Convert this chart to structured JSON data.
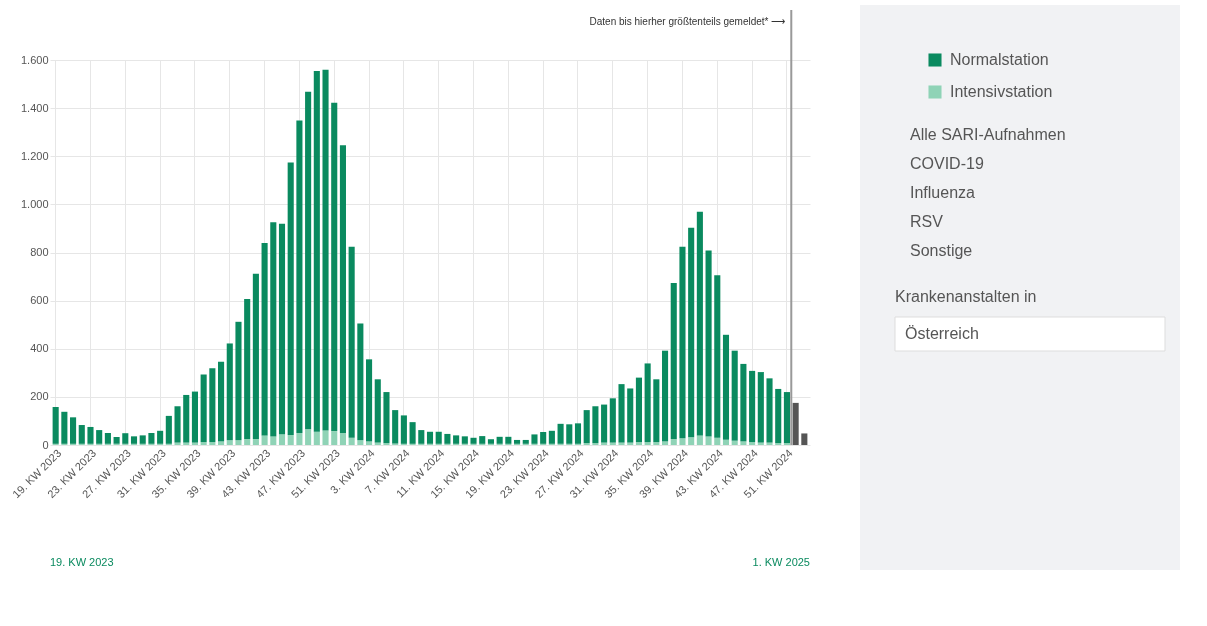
{
  "chart_data": {
    "type": "bar",
    "stacked": true,
    "categories": [
      "19. KW 2023",
      null,
      null,
      null,
      "23. KW 2023",
      null,
      null,
      null,
      "27. KW 2023",
      null,
      null,
      null,
      "31. KW 2023",
      null,
      null,
      null,
      "35. KW 2023",
      null,
      null,
      null,
      "39. KW 2023",
      null,
      null,
      null,
      "43. KW 2023",
      null,
      null,
      null,
      "47. KW 2023",
      null,
      null,
      null,
      "51. KW 2023",
      null,
      null,
      null,
      "3. KW 2024",
      null,
      null,
      null,
      "7. KW 2024",
      null,
      null,
      null,
      "11. KW 2024",
      null,
      null,
      null,
      "15. KW 2024",
      null,
      null,
      null,
      "19. KW 2024",
      null,
      null,
      null,
      "23. KW 2024",
      null,
      null,
      null,
      "27. KW 2024",
      null,
      null,
      null,
      "31. KW 2024",
      null,
      null,
      null,
      "35. KW 2024",
      null,
      null,
      null,
      "39. KW 2024",
      null,
      null,
      null,
      "43. KW 2024",
      null,
      null,
      null,
      "47. KW 2024",
      null,
      null,
      null,
      "51. KW 2024",
      null,
      null
    ],
    "series": [
      {
        "name": "Intensivstation",
        "color": "#8fd3b6",
        "values": [
          5,
          5,
          5,
          5,
          5,
          5,
          5,
          5,
          5,
          5,
          5,
          5,
          5,
          5,
          10,
          10,
          10,
          12,
          12,
          15,
          20,
          20,
          25,
          25,
          40,
          35,
          45,
          42,
          50,
          65,
          55,
          60,
          58,
          50,
          30,
          20,
          15,
          10,
          8,
          6,
          5,
          5,
          5,
          5,
          5,
          5,
          5,
          5,
          5,
          5,
          5,
          5,
          5,
          5,
          5,
          5,
          5,
          5,
          5,
          5,
          5,
          8,
          8,
          10,
          10,
          10,
          10,
          12,
          12,
          12,
          15,
          25,
          28,
          32,
          40,
          35,
          30,
          22,
          18,
          15,
          12,
          10,
          10,
          8,
          8,
          null,
          null
        ]
      },
      {
        "name": "Normalstation",
        "color": "#0a8a5f",
        "values": [
          153,
          133,
          110,
          78,
          70,
          57,
          45,
          28,
          44,
          31,
          35,
          45,
          54,
          116,
          151,
          198,
          212,
          281,
          307,
          331,
          402,
          492,
          582,
          687,
          800,
          891,
          874,
          1132,
          1299,
          1403,
          1499,
          1500,
          1364,
          1196,
          794,
          485,
          341,
          263,
          212,
          139,
          118,
          90,
          57,
          50,
          50,
          41,
          35,
          31,
          25,
          32,
          19,
          29,
          29,
          16,
          16,
          39,
          49,
          54,
          83,
          81,
          85,
          137,
          153,
          158,
          184,
          243,
          225,
          268,
          327,
          261,
          377,
          648,
          796,
          871,
          929,
          773,
          675,
          436,
          374,
          322,
          296,
          293,
          267,
          225,
          212,
          175,
          48
        ],
        "colors": [
          "#0a8a5f",
          "#0a8a5f",
          "#0a8a5f",
          "#0a8a5f",
          "#0a8a5f",
          "#0a8a5f",
          "#0a8a5f",
          "#0a8a5f",
          "#0a8a5f",
          "#0a8a5f",
          "#0a8a5f",
          "#0a8a5f",
          "#0a8a5f",
          "#0a8a5f",
          "#0a8a5f",
          "#0a8a5f",
          "#0a8a5f",
          "#0a8a5f",
          "#0a8a5f",
          "#0a8a5f",
          "#0a8a5f",
          "#0a8a5f",
          "#0a8a5f",
          "#0a8a5f",
          "#0a8a5f",
          "#0a8a5f",
          "#0a8a5f",
          "#0a8a5f",
          "#0a8a5f",
          "#0a8a5f",
          "#0a8a5f",
          "#0a8a5f",
          "#0a8a5f",
          "#0a8a5f",
          "#0a8a5f",
          "#0a8a5f",
          "#0a8a5f",
          "#0a8a5f",
          "#0a8a5f",
          "#0a8a5f",
          "#0a8a5f",
          "#0a8a5f",
          "#0a8a5f",
          "#0a8a5f",
          "#0a8a5f",
          "#0a8a5f",
          "#0a8a5f",
          "#0a8a5f",
          "#0a8a5f",
          "#0a8a5f",
          "#0a8a5f",
          "#0a8a5f",
          "#0a8a5f",
          "#0a8a5f",
          "#0a8a5f",
          "#0a8a5f",
          "#0a8a5f",
          "#0a8a5f",
          "#0a8a5f",
          "#0a8a5f",
          "#0a8a5f",
          "#0a8a5f",
          "#0a8a5f",
          "#0a8a5f",
          "#0a8a5f",
          "#0a8a5f",
          "#0a8a5f",
          "#0a8a5f",
          "#0a8a5f",
          "#0a8a5f",
          "#0a8a5f",
          "#0a8a5f",
          "#0a8a5f",
          "#0a8a5f",
          "#0a8a5f",
          "#0a8a5f",
          "#0a8a5f",
          "#0a8a5f",
          "#0a8a5f",
          "#0a8a5f",
          "#0a8a5f",
          "#0a8a5f",
          "#0a8a5f",
          "#0a8a5f",
          "#0a8a5f",
          "#555555",
          "#555555"
        ]
      }
    ],
    "ylim": [
      0,
      1600
    ],
    "yticks": [
      0,
      200,
      400,
      600,
      800,
      {
        "value": 1000,
        "label": "1.000"
      },
      {
        "value": 1200,
        "label": "1.200"
      },
      {
        "value": 1400,
        "label": "1.400"
      },
      {
        "value": 1600,
        "label": "1.600"
      }
    ],
    "grid": true,
    "legend": "top right",
    "annotations": [
      "Daten bis hierher größtenteils gemeldet* ⟶",
      "Alle SARI-Aufnahmen",
      "COVID-19",
      "Influenza",
      "RSV",
      "Sonstige",
      "Krankenanstalten in",
      "Österreich",
      "19. KW 2023",
      "1. KW 2025"
    ]
  }
}
